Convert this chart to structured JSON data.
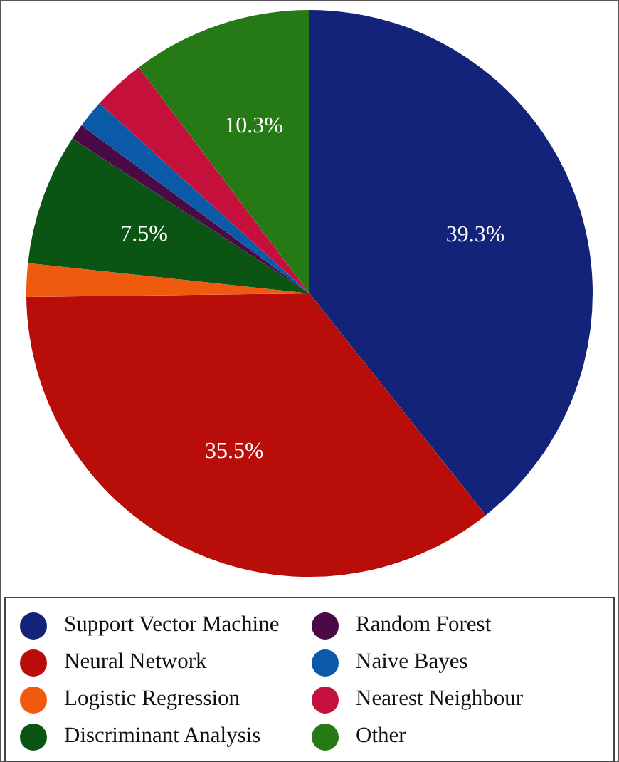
{
  "chart_data": {
    "type": "pie",
    "categories": [
      "Support Vector Machine",
      "Neural Network",
      "Logistic Regression",
      "Discriminant Analysis",
      "Random Forest",
      "Naive Bayes",
      "Nearest Neighbour",
      "Other"
    ],
    "values": [
      39.3,
      35.5,
      1.9,
      7.5,
      0.9,
      1.6,
      3.0,
      10.3
    ],
    "value_labels": [
      "39.3%",
      "35.5%",
      null,
      "7.5%",
      null,
      null,
      null,
      "10.3%"
    ],
    "colors": [
      "#14237a",
      "#b80d08",
      "#f05a0f",
      "#0b5514",
      "#4a0a46",
      "#0b5aa8",
      "#c4103a",
      "#267a16"
    ],
    "legend": "bottom"
  }
}
